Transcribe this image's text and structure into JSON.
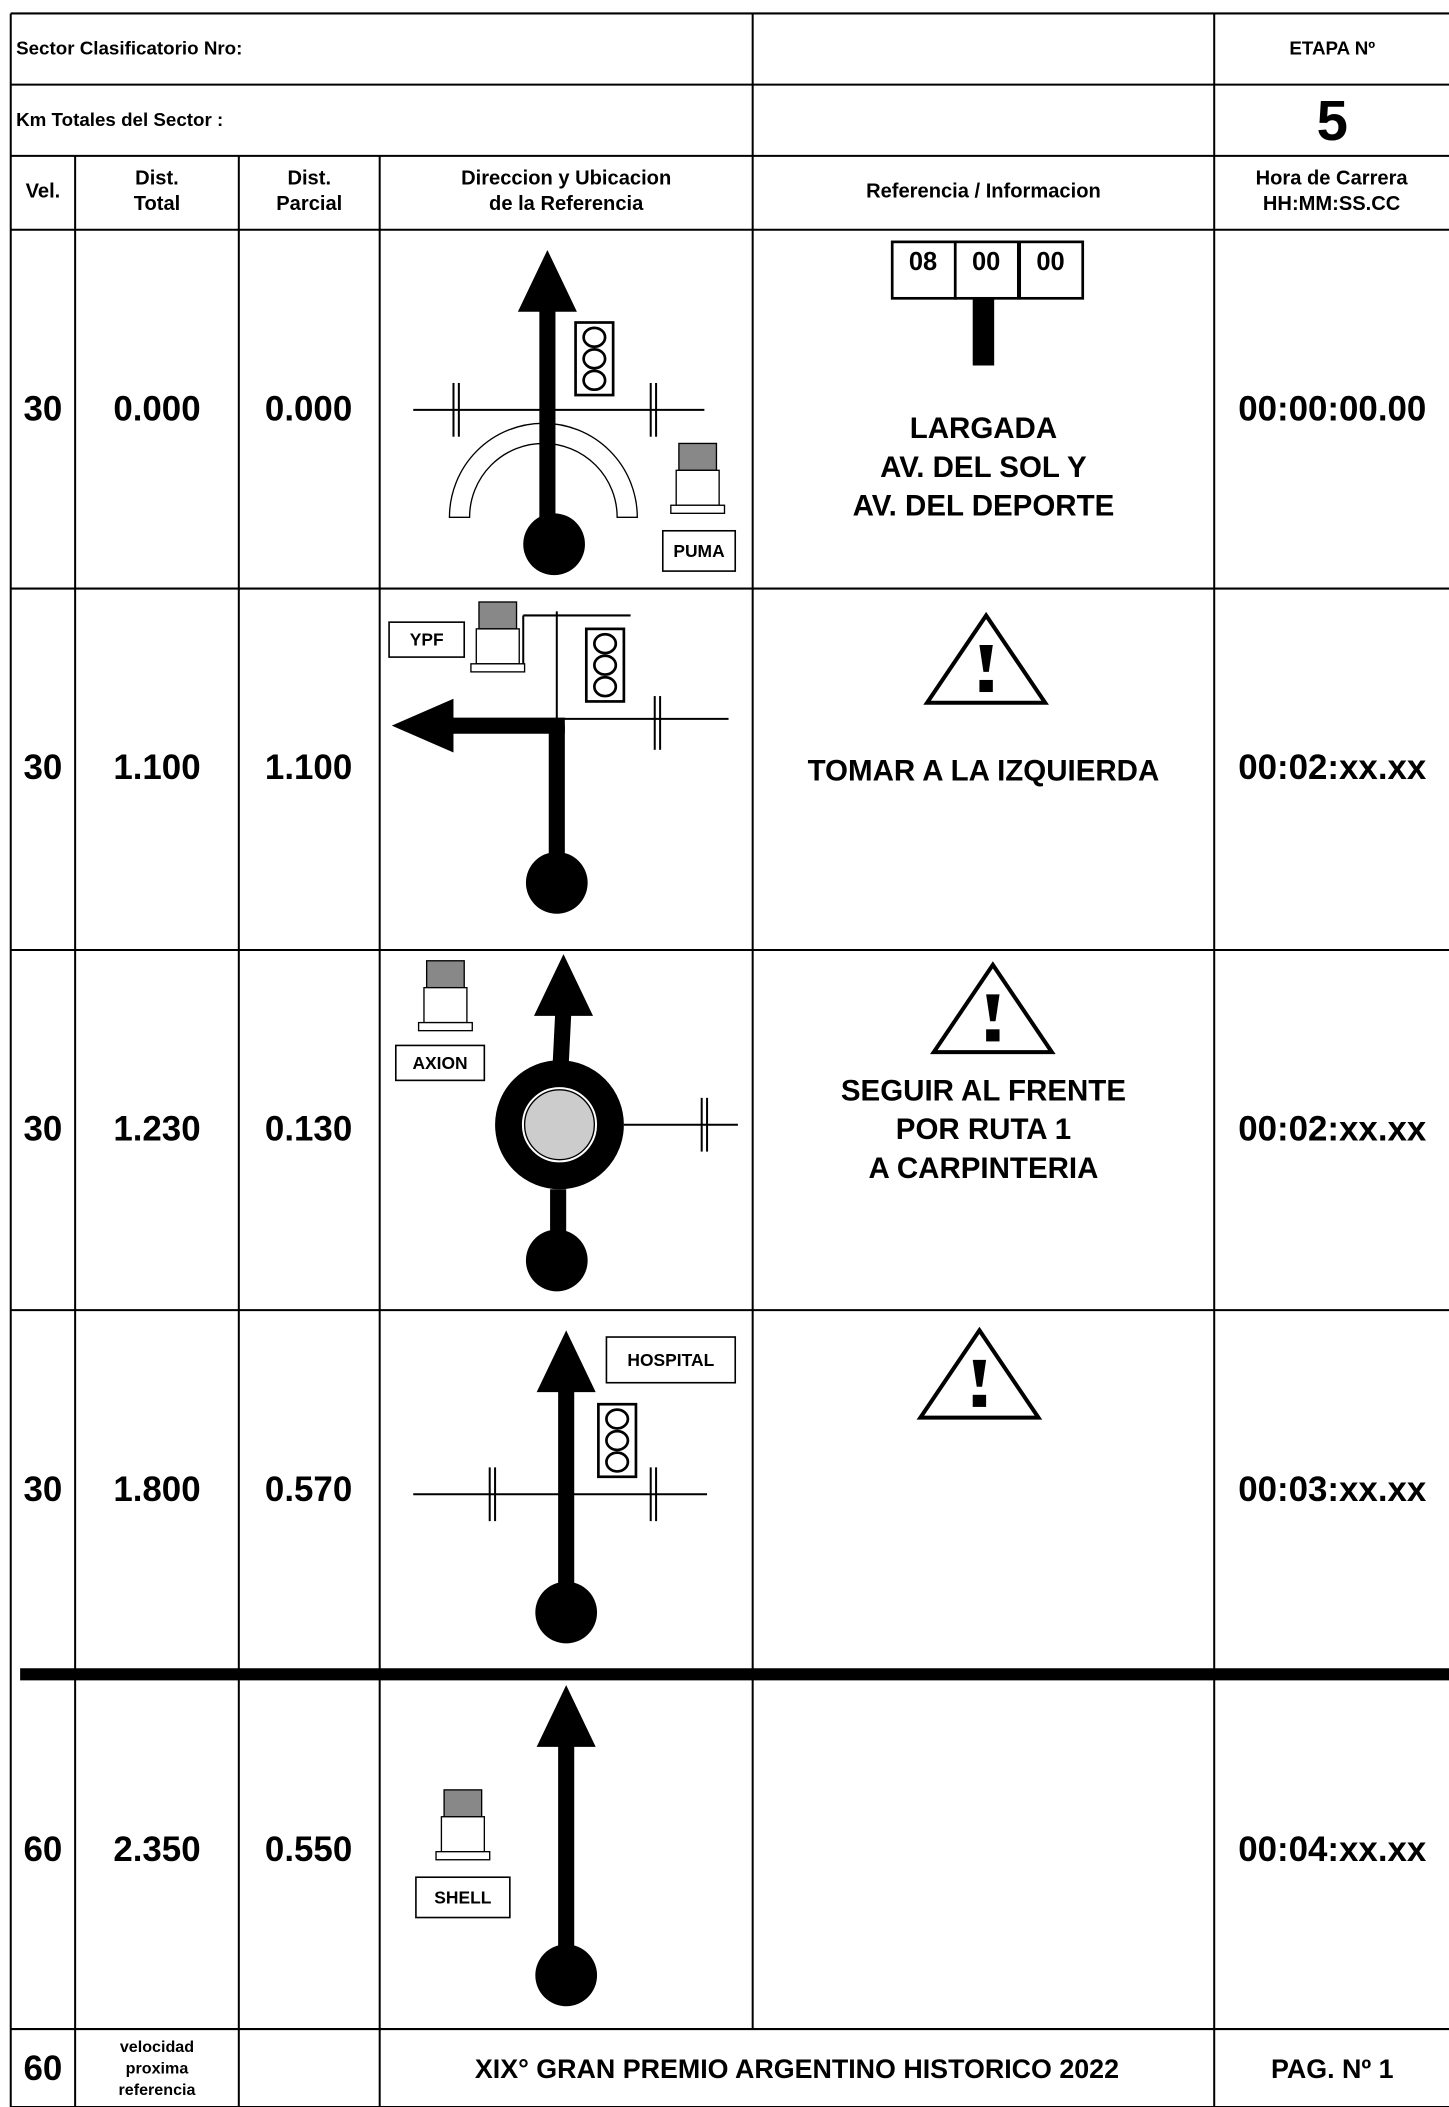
{
  "header": {
    "sector_label": "Sector Clasificatorio Nro:",
    "km_label": "Km Totales del Sector :",
    "etapa_label": "ETAPA Nº",
    "etapa_number": "5"
  },
  "columns": [
    [
      "Vel."
    ],
    [
      "Dist.",
      "Total"
    ],
    [
      "Dist.",
      "Parcial"
    ],
    [
      "Direccion y Ubicacion",
      "de la Referencia"
    ],
    [
      "Referencia / Informacion"
    ],
    [
      "Hora de Carrera",
      "HH:MM:SS.CC"
    ]
  ],
  "rows": [
    {
      "vel": "30",
      "dist_total": "0.000",
      "dist_parcial": "0.000",
      "clock": [
        "08",
        "00",
        "00"
      ],
      "info": [
        "LARGADA",
        "AV. DEL SOL Y",
        "AV. DEL DEPORTE"
      ],
      "time": "00:00:00.00",
      "place_label": "PUMA"
    },
    {
      "vel": "30",
      "dist_total": "1.100",
      "dist_parcial": "1.100",
      "info": [
        "TOMAR A LA IZQUIERDA"
      ],
      "time": "00:02:xx.xx",
      "place_label": "YPF"
    },
    {
      "vel": "30",
      "dist_total": "1.230",
      "dist_parcial": "0.130",
      "info": [
        "SEGUIR AL FRENTE",
        "POR RUTA 1",
        "A CARPINTERIA"
      ],
      "time": "00:02:xx.xx",
      "place_label": "AXION"
    },
    {
      "vel": "30",
      "dist_total": "1.800",
      "dist_parcial": "0.570",
      "info": [],
      "time": "00:03:xx.xx",
      "place_label": "HOSPITAL"
    },
    {
      "vel": "60",
      "dist_total": "2.350",
      "dist_parcial": "0.550",
      "info": [],
      "time": "00:04:xx.xx",
      "place_label": "SHELL"
    }
  ],
  "footer": {
    "vel": "60",
    "note": [
      "velocidad",
      "proxima",
      "referencia"
    ],
    "title": "XIX° GRAN PREMIO ARGENTINO HISTORICO 2022",
    "page": "PAG. Nº 1"
  }
}
